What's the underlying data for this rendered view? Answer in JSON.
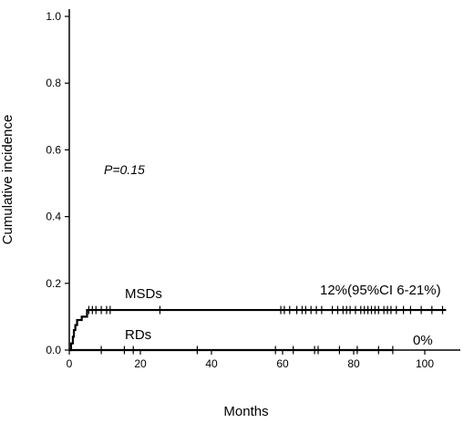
{
  "chart_data": {
    "type": "line",
    "title": "",
    "xlabel": "Months",
    "ylabel": "Cumulative incidence",
    "xlim": [
      0,
      110
    ],
    "ylim": [
      0,
      1.0
    ],
    "xticks": [
      "0",
      "20",
      "40",
      "60",
      "80",
      "100"
    ],
    "yticks": [
      "0.0",
      "0.2",
      "0.4",
      "0.6",
      "0.8",
      "1.0"
    ],
    "grid": false,
    "p_value": "P=0.15",
    "series": [
      {
        "name": "MSDs",
        "annotation": "12%(95%CI 6-21%)",
        "step_points": [
          [
            0,
            0
          ],
          [
            0.5,
            0.02
          ],
          [
            1,
            0.04
          ],
          [
            1.3,
            0.06
          ],
          [
            1.7,
            0.075
          ],
          [
            2.2,
            0.09
          ],
          [
            3.5,
            0.1
          ],
          [
            5,
            0.12
          ],
          [
            106,
            0.12
          ]
        ],
        "censor_x": [
          5.5,
          6.5,
          7.5,
          9,
          10.5,
          11.5,
          25.5,
          59.5,
          60.5,
          62,
          64,
          65.5,
          66.5,
          68,
          69.5,
          71,
          74,
          75.5,
          77,
          78,
          79,
          80.5,
          82,
          83,
          84,
          85,
          86,
          87,
          88.5,
          89.5,
          90.5,
          92,
          94,
          96,
          99,
          102,
          105
        ]
      },
      {
        "name": "RDs",
        "annotation": "0%",
        "step_points": [
          [
            0,
            0
          ],
          [
            91,
            0
          ]
        ],
        "censor_x": [
          9,
          15.5,
          18,
          36,
          58,
          63,
          69,
          70,
          76,
          81,
          87,
          91
        ]
      }
    ]
  }
}
